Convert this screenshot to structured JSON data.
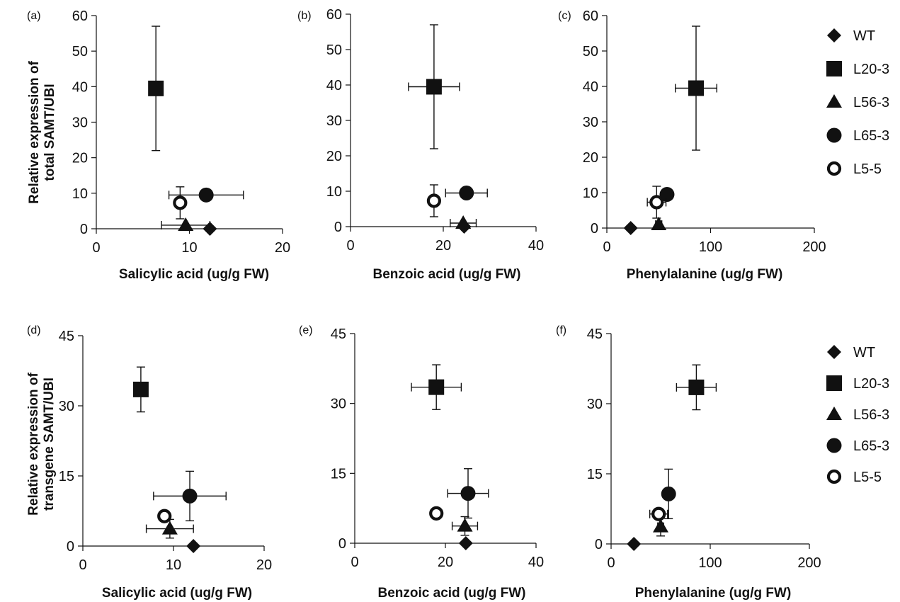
{
  "chart_data": [
    {
      "panel": "(a)",
      "type": "scatter",
      "xlabel": "Salicylic acid (ug/g FW)",
      "ylabel": "Relative expression of total SAMT/UBI",
      "xlim": [
        0,
        20
      ],
      "ylim": [
        0,
        60
      ],
      "xticks": [
        0,
        10,
        20
      ],
      "yticks": [
        0,
        10,
        20,
        30,
        40,
        50,
        60
      ],
      "series": [
        {
          "name": "WT",
          "marker": "diamond",
          "x": 12.2,
          "y": 0,
          "xerr": null,
          "yerr": null
        },
        {
          "name": "L20-3",
          "marker": "square",
          "x": 6.4,
          "y": 39.5,
          "xerr": null,
          "yerr": 17.5
        },
        {
          "name": "L56-3",
          "marker": "triangle",
          "x": 9.6,
          "y": 1.0,
          "xerr": 2.6,
          "yerr": null
        },
        {
          "name": "L65-3",
          "marker": "filled-circle",
          "x": 11.8,
          "y": 9.5,
          "xerr": 4.0,
          "yerr": null
        },
        {
          "name": "L5-5",
          "marker": "open-circle",
          "x": 9.0,
          "y": 7.3,
          "xerr": null,
          "yerr": 4.5
        }
      ]
    },
    {
      "panel": "(b)",
      "type": "scatter",
      "xlabel": "Benzoic acid (ug/g FW)",
      "ylabel": "",
      "xlim": [
        0,
        40
      ],
      "ylim": [
        0,
        60
      ],
      "xticks": [
        0,
        20,
        40
      ],
      "yticks": [
        0,
        10,
        20,
        30,
        40,
        50,
        60
      ],
      "series": [
        {
          "name": "WT",
          "marker": "diamond",
          "x": 24.5,
          "y": 0,
          "xerr": null,
          "yerr": null
        },
        {
          "name": "L20-3",
          "marker": "square",
          "x": 18.0,
          "y": 39.5,
          "xerr": 5.5,
          "yerr": 17.5
        },
        {
          "name": "L56-3",
          "marker": "triangle",
          "x": 24.3,
          "y": 1.0,
          "xerr": 2.8,
          "yerr": null
        },
        {
          "name": "L65-3",
          "marker": "filled-circle",
          "x": 25.0,
          "y": 9.5,
          "xerr": 4.5,
          "yerr": null
        },
        {
          "name": "L5-5",
          "marker": "open-circle",
          "x": 18.0,
          "y": 7.3,
          "xerr": null,
          "yerr": 4.5
        }
      ]
    },
    {
      "panel": "(c)",
      "type": "scatter",
      "xlabel": "Phenylalanine (ug/g FW)",
      "ylabel": "",
      "xlim": [
        0,
        200
      ],
      "ylim": [
        0,
        60
      ],
      "xticks": [
        0,
        100,
        200
      ],
      "yticks": [
        0,
        10,
        20,
        30,
        40,
        50,
        60
      ],
      "series": [
        {
          "name": "WT",
          "marker": "diamond",
          "x": 23,
          "y": 0,
          "xerr": null,
          "yerr": null
        },
        {
          "name": "L20-3",
          "marker": "square",
          "x": 86,
          "y": 39.5,
          "xerr": 20,
          "yerr": 17.5
        },
        {
          "name": "L56-3",
          "marker": "triangle",
          "x": 50,
          "y": 1.0,
          "xerr": 3,
          "yerr": null
        },
        {
          "name": "L65-3",
          "marker": "filled-circle",
          "x": 58,
          "y": 9.5,
          "xerr": 4,
          "yerr": null
        },
        {
          "name": "L5-5",
          "marker": "open-circle",
          "x": 48,
          "y": 7.3,
          "xerr": 9,
          "yerr": 4.5
        }
      ]
    },
    {
      "panel": "(d)",
      "type": "scatter",
      "xlabel": "Salicylic acid (ug/g FW)",
      "ylabel": "Relative expression of transgene SAMT/UBI",
      "xlim": [
        0,
        20
      ],
      "ylim": [
        0,
        45
      ],
      "xticks": [
        0,
        10,
        20
      ],
      "yticks": [
        0,
        15,
        30,
        45
      ],
      "series": [
        {
          "name": "WT",
          "marker": "diamond",
          "x": 12.2,
          "y": 0,
          "xerr": null,
          "yerr": null
        },
        {
          "name": "L20-3",
          "marker": "square",
          "x": 6.4,
          "y": 33.5,
          "xerr": null,
          "yerr": 4.8
        },
        {
          "name": "L56-3",
          "marker": "triangle",
          "x": 9.6,
          "y": 3.7,
          "xerr": 2.6,
          "yerr": 2.0
        },
        {
          "name": "L65-3",
          "marker": "filled-circle",
          "x": 11.8,
          "y": 10.7,
          "xerr": 4.0,
          "yerr": 5.3
        },
        {
          "name": "L5-5",
          "marker": "open-circle",
          "x": 9.0,
          "y": 6.4,
          "xerr": null,
          "yerr": null
        }
      ]
    },
    {
      "panel": "(e)",
      "type": "scatter",
      "xlabel": "Benzoic acid (ug/g FW)",
      "ylabel": "",
      "xlim": [
        0,
        40
      ],
      "ylim": [
        0,
        45
      ],
      "xticks": [
        0,
        20,
        40
      ],
      "yticks": [
        0,
        15,
        30,
        45
      ],
      "series": [
        {
          "name": "WT",
          "marker": "diamond",
          "x": 24.5,
          "y": 0,
          "xerr": null,
          "yerr": null
        },
        {
          "name": "L20-3",
          "marker": "square",
          "x": 18.0,
          "y": 33.5,
          "xerr": 5.5,
          "yerr": 4.8
        },
        {
          "name": "L56-3",
          "marker": "triangle",
          "x": 24.3,
          "y": 3.7,
          "xerr": 2.8,
          "yerr": 2.0
        },
        {
          "name": "L65-3",
          "marker": "filled-circle",
          "x": 25.0,
          "y": 10.7,
          "xerr": 4.5,
          "yerr": 5.3
        },
        {
          "name": "L5-5",
          "marker": "open-circle",
          "x": 18.0,
          "y": 6.4,
          "xerr": null,
          "yerr": null
        }
      ]
    },
    {
      "panel": "(f)",
      "type": "scatter",
      "xlabel": "Phenylalanine (ug/g FW)",
      "ylabel": "",
      "xlim": [
        0,
        200
      ],
      "ylim": [
        0,
        45
      ],
      "xticks": [
        0,
        100,
        200
      ],
      "yticks": [
        0,
        15,
        30,
        45
      ],
      "series": [
        {
          "name": "WT",
          "marker": "diamond",
          "x": 23,
          "y": 0,
          "xerr": null,
          "yerr": null
        },
        {
          "name": "L20-3",
          "marker": "square",
          "x": 86,
          "y": 33.5,
          "xerr": 20,
          "yerr": 4.8
        },
        {
          "name": "L56-3",
          "marker": "triangle",
          "x": 50,
          "y": 3.7,
          "xerr": 3,
          "yerr": 2.0
        },
        {
          "name": "L65-3",
          "marker": "filled-circle",
          "x": 58,
          "y": 10.7,
          "xerr": 4,
          "yerr": 5.3
        },
        {
          "name": "L5-5",
          "marker": "open-circle",
          "x": 48,
          "y": 6.4,
          "xerr": 9,
          "yerr": 1.0
        }
      ]
    }
  ],
  "legends": [
    {
      "entries": [
        {
          "label": "WT",
          "marker": "diamond"
        },
        {
          "label": "L20-3",
          "marker": "square"
        },
        {
          "label": "L56-3",
          "marker": "triangle"
        },
        {
          "label": "L65-3",
          "marker": "filled-circle"
        },
        {
          "label": "L5-5",
          "marker": "open-circle"
        }
      ]
    },
    {
      "entries": [
        {
          "label": "WT",
          "marker": "diamond"
        },
        {
          "label": "L20-3",
          "marker": "square"
        },
        {
          "label": "L56-3",
          "marker": "triangle"
        },
        {
          "label": "L65-3",
          "marker": "filled-circle"
        },
        {
          "label": "L5-5",
          "marker": "open-circle"
        }
      ]
    }
  ],
  "colors": {
    "ink": "#111111",
    "background": "#ffffff"
  }
}
